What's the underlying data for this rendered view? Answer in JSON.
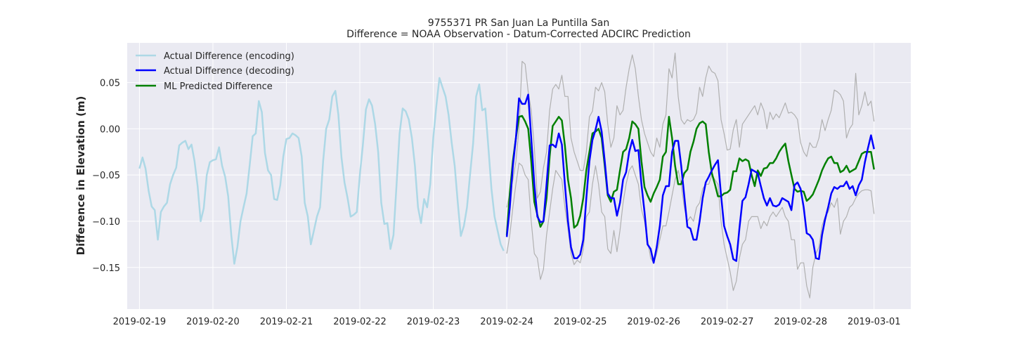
{
  "chart_data": {
    "type": "line",
    "title": "9755371 PR San Juan La Puntilla San",
    "subtitle": "Difference = NOAA Observation - Datum-Corrected ADCIRC Prediction",
    "xlabel": "",
    "ylabel": "Difference in Elevation (m)",
    "x_ticks": [
      "2019-02-19",
      "2019-02-20",
      "2019-02-21",
      "2019-02-22",
      "2019-02-23",
      "2019-02-24",
      "2019-02-25",
      "2019-02-26",
      "2019-02-27",
      "2019-02-28",
      "2019-03-01"
    ],
    "y_ticks": [
      "0.05",
      "0.00",
      "−0.05",
      "−0.10",
      "−0.15"
    ],
    "xlim": [
      "2019-02-18T20:00",
      "2019-03-01T12:00"
    ],
    "ylim": [
      -0.195,
      0.093
    ],
    "grid": true,
    "legend_position": "top-left",
    "colors": {
      "encoding": "#add8e6",
      "decoding": "#0000ff",
      "predicted": "#008000",
      "band": "#b0b0b0",
      "plot_bg": "#eaeaf2",
      "grid": "#ffffff"
    },
    "series": [
      {
        "name": "Actual Difference (encoding)",
        "key": "encoding",
        "x_start": "2019-02-19T00:00",
        "x_step_hours": 1,
        "values": [
          -0.043,
          -0.031,
          -0.043,
          -0.067,
          -0.084,
          -0.088,
          -0.12,
          -0.09,
          -0.084,
          -0.08,
          -0.06,
          -0.05,
          -0.042,
          -0.018,
          -0.015,
          -0.013,
          -0.022,
          -0.017,
          -0.035,
          -0.062,
          -0.1,
          -0.086,
          -0.05,
          -0.036,
          -0.034,
          -0.033,
          -0.02,
          -0.04,
          -0.052,
          -0.073,
          -0.115,
          -0.146,
          -0.128,
          -0.1,
          -0.085,
          -0.07,
          -0.04,
          -0.008,
          -0.005,
          0.03,
          0.018,
          -0.026,
          -0.045,
          -0.05,
          -0.076,
          -0.077,
          -0.061,
          -0.03,
          -0.011,
          -0.01,
          -0.005,
          -0.007,
          -0.01,
          -0.03,
          -0.08,
          -0.095,
          -0.125,
          -0.11,
          -0.095,
          -0.085,
          -0.035,
          0.0,
          0.01,
          0.035,
          0.041,
          0.015,
          -0.031,
          -0.058,
          -0.075,
          -0.095,
          -0.093,
          -0.09,
          -0.05,
          -0.017,
          0.021,
          0.032,
          0.025,
          0.005,
          -0.025,
          -0.08,
          -0.103,
          -0.102,
          -0.13,
          -0.115,
          -0.06,
          -0.005,
          0.022,
          0.019,
          0.01,
          -0.01,
          -0.04,
          -0.085,
          -0.102,
          -0.076,
          -0.085,
          -0.06,
          -0.01,
          0.025,
          0.055,
          0.045,
          0.035,
          0.015,
          -0.015,
          -0.04,
          -0.08,
          -0.116,
          -0.105,
          -0.085,
          -0.05,
          -0.016,
          0.035,
          0.048,
          0.02,
          0.022,
          -0.02,
          -0.065,
          -0.095,
          -0.11,
          -0.125,
          -0.132
        ]
      },
      {
        "name": "Actual Difference (decoding)",
        "key": "decoding",
        "x_start": "2019-02-24T00:00",
        "x_step_hours": 1,
        "values": [
          -0.117,
          -0.085,
          -0.04,
          -0.01,
          0.033,
          0.027,
          0.027,
          0.037,
          -0.01,
          -0.06,
          -0.095,
          -0.101,
          -0.1,
          -0.06,
          -0.018,
          -0.017,
          -0.02,
          -0.005,
          -0.017,
          -0.06,
          -0.1,
          -0.128,
          -0.14,
          -0.14,
          -0.136,
          -0.12,
          -0.075,
          -0.035,
          -0.012,
          -0.001,
          0.013,
          -0.003,
          -0.035,
          -0.07,
          -0.075,
          -0.075,
          -0.094,
          -0.08,
          -0.055,
          -0.047,
          -0.025,
          -0.012,
          -0.024,
          -0.023,
          -0.06,
          -0.09,
          -0.125,
          -0.13,
          -0.145,
          -0.128,
          -0.105,
          -0.072,
          -0.062,
          -0.062,
          -0.025,
          -0.013,
          -0.013,
          -0.04,
          -0.073,
          -0.106,
          -0.108,
          -0.12,
          -0.12,
          -0.1,
          -0.075,
          -0.058,
          -0.052,
          -0.045,
          -0.039,
          -0.034,
          -0.072,
          -0.105,
          -0.116,
          -0.125,
          -0.141,
          -0.143,
          -0.108,
          -0.078,
          -0.074,
          -0.06,
          -0.044,
          -0.046,
          -0.048,
          -0.062,
          -0.075,
          -0.083,
          -0.075,
          -0.083,
          -0.084,
          -0.082,
          -0.075,
          -0.077,
          -0.079,
          -0.088,
          -0.061,
          -0.058,
          -0.065,
          -0.085,
          -0.113,
          -0.115,
          -0.12,
          -0.14,
          -0.141,
          -0.115,
          -0.098,
          -0.085,
          -0.07,
          -0.063,
          -0.065,
          -0.062,
          -0.062,
          -0.057,
          -0.065,
          -0.062,
          -0.072,
          -0.061,
          -0.055,
          -0.036,
          -0.021,
          -0.007,
          -0.022
        ]
      },
      {
        "name": "ML Predicted Difference",
        "key": "predicted",
        "x_start": "2019-02-24T00:00",
        "x_step_hours": 1,
        "values": [
          -0.115,
          -0.07,
          -0.035,
          -0.01,
          0.013,
          0.014,
          0.008,
          0.0,
          -0.035,
          -0.079,
          -0.093,
          -0.106,
          -0.1,
          -0.075,
          -0.03,
          0.003,
          0.008,
          0.013,
          0.009,
          -0.018,
          -0.055,
          -0.075,
          -0.107,
          -0.104,
          -0.094,
          -0.075,
          -0.045,
          -0.025,
          -0.005,
          -0.003,
          0.0,
          -0.01,
          -0.04,
          -0.072,
          -0.079,
          -0.068,
          -0.066,
          -0.045,
          -0.025,
          -0.022,
          -0.01,
          0.008,
          0.005,
          0.0,
          -0.035,
          -0.063,
          -0.072,
          -0.079,
          -0.07,
          -0.063,
          -0.055,
          -0.03,
          -0.025,
          0.013,
          -0.01,
          -0.04,
          -0.06,
          -0.06,
          -0.048,
          -0.044,
          -0.025,
          -0.014,
          0.0,
          0.006,
          0.008,
          0.005,
          -0.025,
          -0.048,
          -0.06,
          -0.073,
          -0.073,
          -0.07,
          -0.069,
          -0.066,
          -0.046,
          -0.046,
          -0.032,
          -0.035,
          -0.033,
          -0.035,
          -0.05,
          -0.062,
          -0.045,
          -0.051,
          -0.043,
          -0.042,
          -0.037,
          -0.037,
          -0.032,
          -0.025,
          -0.02,
          -0.016,
          -0.035,
          -0.05,
          -0.065,
          -0.068,
          -0.067,
          -0.068,
          -0.078,
          -0.075,
          -0.071,
          -0.063,
          -0.055,
          -0.045,
          -0.038,
          -0.032,
          -0.03,
          -0.037,
          -0.037,
          -0.047,
          -0.045,
          -0.04,
          -0.047,
          -0.045,
          -0.043,
          -0.035,
          -0.027,
          -0.025,
          -0.025,
          -0.025,
          -0.044
        ]
      },
      {
        "name": "",
        "key": "upper_band",
        "x_start": "2019-02-24T00:00",
        "x_step_hours": 1,
        "values": [
          -0.085,
          -0.07,
          -0.055,
          -0.035,
          0.0,
          0.073,
          0.07,
          0.04,
          0.02,
          -0.02,
          -0.075,
          -0.068,
          -0.042,
          -0.025,
          0.02,
          0.043,
          0.048,
          0.043,
          0.058,
          0.035,
          0.035,
          -0.01,
          -0.025,
          -0.035,
          -0.045,
          -0.045,
          -0.025,
          0.013,
          0.019,
          0.045,
          0.041,
          0.05,
          0.04,
          0.005,
          -0.02,
          -0.01,
          0.025,
          0.015,
          0.02,
          0.045,
          0.065,
          0.08,
          0.065,
          0.035,
          0.01,
          -0.005,
          -0.015,
          -0.025,
          -0.03,
          -0.01,
          -0.02,
          0.005,
          0.015,
          0.065,
          0.055,
          0.082,
          0.035,
          0.01,
          0.005,
          0.01,
          0.008,
          0.01,
          0.017,
          0.045,
          0.035,
          0.055,
          0.068,
          0.062,
          0.06,
          0.052,
          0.01,
          -0.005,
          -0.023,
          -0.022,
          -0.001,
          0.01,
          -0.02,
          0.005,
          0.01,
          0.015,
          0.02,
          0.025,
          0.015,
          0.028,
          0.02,
          0.0,
          0.018,
          0.01,
          0.016,
          0.012,
          0.02,
          0.028,
          0.017,
          0.018,
          0.015,
          0.01,
          -0.015,
          -0.025,
          -0.03,
          -0.015,
          -0.02,
          -0.02,
          -0.01,
          0.01,
          -0.002,
          0.01,
          0.02,
          0.042,
          0.04,
          0.037,
          0.03,
          -0.01,
          0.0,
          0.005,
          0.06,
          0.015,
          0.025,
          0.04,
          0.025,
          0.03,
          0.008
        ]
      },
      {
        "name": "",
        "key": "lower_band",
        "x_start": "2019-02-24T00:00",
        "x_step_hours": 1,
        "values": [
          -0.135,
          -0.115,
          -0.085,
          -0.06,
          -0.037,
          -0.04,
          -0.05,
          -0.055,
          -0.1,
          -0.135,
          -0.14,
          -0.163,
          -0.152,
          -0.115,
          -0.09,
          -0.065,
          -0.045,
          -0.05,
          -0.055,
          -0.085,
          -0.108,
          -0.135,
          -0.147,
          -0.142,
          -0.145,
          -0.13,
          -0.095,
          -0.09,
          -0.06,
          -0.04,
          -0.06,
          -0.09,
          -0.095,
          -0.13,
          -0.135,
          -0.11,
          -0.133,
          -0.11,
          -0.08,
          -0.06,
          -0.045,
          -0.04,
          -0.05,
          -0.06,
          -0.087,
          -0.1,
          -0.12,
          -0.14,
          -0.145,
          -0.135,
          -0.12,
          -0.105,
          -0.105,
          -0.09,
          -0.072,
          -0.055,
          -0.045,
          -0.06,
          -0.085,
          -0.1,
          -0.095,
          -0.1,
          -0.085,
          -0.08,
          -0.065,
          -0.06,
          -0.06,
          -0.05,
          -0.055,
          -0.06,
          -0.1,
          -0.125,
          -0.14,
          -0.155,
          -0.175,
          -0.165,
          -0.14,
          -0.125,
          -0.12,
          -0.1,
          -0.095,
          -0.095,
          -0.095,
          -0.108,
          -0.1,
          -0.105,
          -0.095,
          -0.09,
          -0.095,
          -0.09,
          -0.085,
          -0.095,
          -0.1,
          -0.12,
          -0.12,
          -0.152,
          -0.145,
          -0.145,
          -0.17,
          -0.183,
          -0.15,
          -0.135,
          -0.128,
          -0.105,
          -0.095,
          -0.09,
          -0.08,
          -0.085,
          -0.075,
          -0.114,
          -0.1,
          -0.095,
          -0.085,
          -0.082,
          -0.075,
          -0.07,
          -0.067,
          -0.066,
          -0.066,
          -0.067,
          -0.092
        ]
      }
    ]
  }
}
